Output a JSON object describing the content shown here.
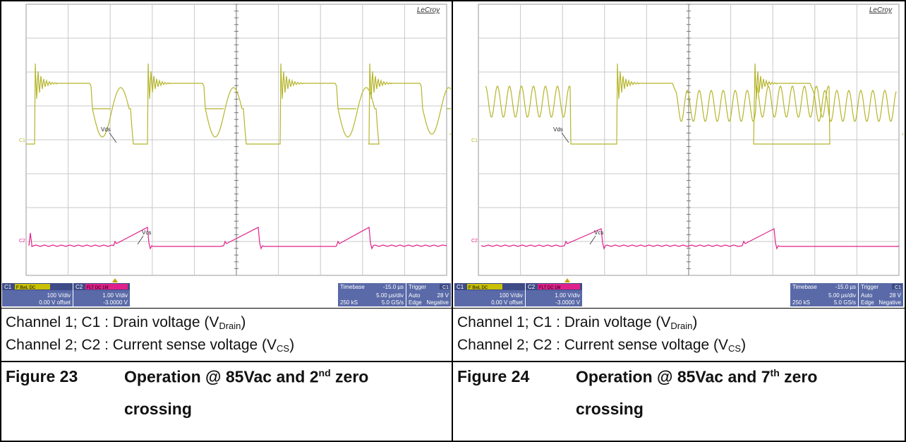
{
  "scopes": [
    {
      "brand": "LeCroy",
      "c1_marker": "C1",
      "c2_marker": "C2",
      "trace1_label": "Vds",
      "trace2_label": "Vcs",
      "c1_panel": {
        "name": "C1",
        "flags": "F  BwL DC",
        "line1": "100 V/div",
        "line2": "0.00 V offset"
      },
      "c2_panel": {
        "name": "C2",
        "flags": "FLT DC 1M",
        "line1": "1.00 V/div",
        "line2": "-3.0000 V"
      },
      "timebase": {
        "title": "Timebase",
        "value": "-15.0 µs",
        "line1": "5.00 µs/div",
        "line2a": "250 kS",
        "line2b": "5.0 GS/s"
      },
      "trigger": {
        "title": "Trigger",
        "channel": "C1",
        "line1a": "Auto",
        "line1b": "28 V",
        "line2a": "Edge",
        "line2b": "Negative"
      },
      "colors": {
        "c1": "#b5b52a",
        "c2": "#e0208a"
      },
      "zero_crossing": 2
    },
    {
      "brand": "LeCroy",
      "c1_marker": "C1",
      "c2_marker": "C2",
      "trace1_label": "Vds",
      "trace2_label": "Vcs",
      "c1_panel": {
        "name": "C1",
        "flags": "F  BwL DC",
        "line1": "100 V/div",
        "line2": "0.00 V offset"
      },
      "c2_panel": {
        "name": "C2",
        "flags": "FLT DC 1M",
        "line1": "1.00 V/div",
        "line2": "-3.0000 V"
      },
      "timebase": {
        "title": "Timebase",
        "value": "-15.0 µs",
        "line1": "5.00 µs/div",
        "line2a": "250 kS",
        "line2b": "5.0 GS/s"
      },
      "trigger": {
        "title": "Trigger",
        "channel": "C1",
        "line1a": "Auto",
        "line1b": "28 V",
        "line2a": "Edge",
        "line2b": "Negative"
      },
      "colors": {
        "c1": "#b5b52a",
        "c2": "#e0208a"
      },
      "zero_crossing": 7
    }
  ],
  "captions": {
    "left": {
      "ch1_prefix": "Channel 1; C1 : Drain voltage (V",
      "ch1_sub": "Drain",
      "ch1_suffix": ")",
      "ch2_prefix": "Channel 2; C2 : Current sense voltage (V",
      "ch2_sub": "CS",
      "ch2_suffix": ")"
    },
    "right": {
      "ch1_prefix": "Channel 1; C1 : Drain voltage (V",
      "ch1_sub": "Drain",
      "ch1_suffix": ")",
      "ch2_prefix": "Channel 2; C2 : Current sense voltage (V",
      "ch2_sub": "CS",
      "ch2_suffix": ")"
    }
  },
  "figures": {
    "left": {
      "number": "Figure 23",
      "title_a": "Operation @ 85Vac and 2",
      "title_sup": "nd",
      "title_b": " zero",
      "title_c": "crossing"
    },
    "right": {
      "number": "Figure 24",
      "title_a": "Operation @ 85Vac and 7",
      "title_sup": "th",
      "title_b": "  zero",
      "title_c": "crossing"
    }
  }
}
